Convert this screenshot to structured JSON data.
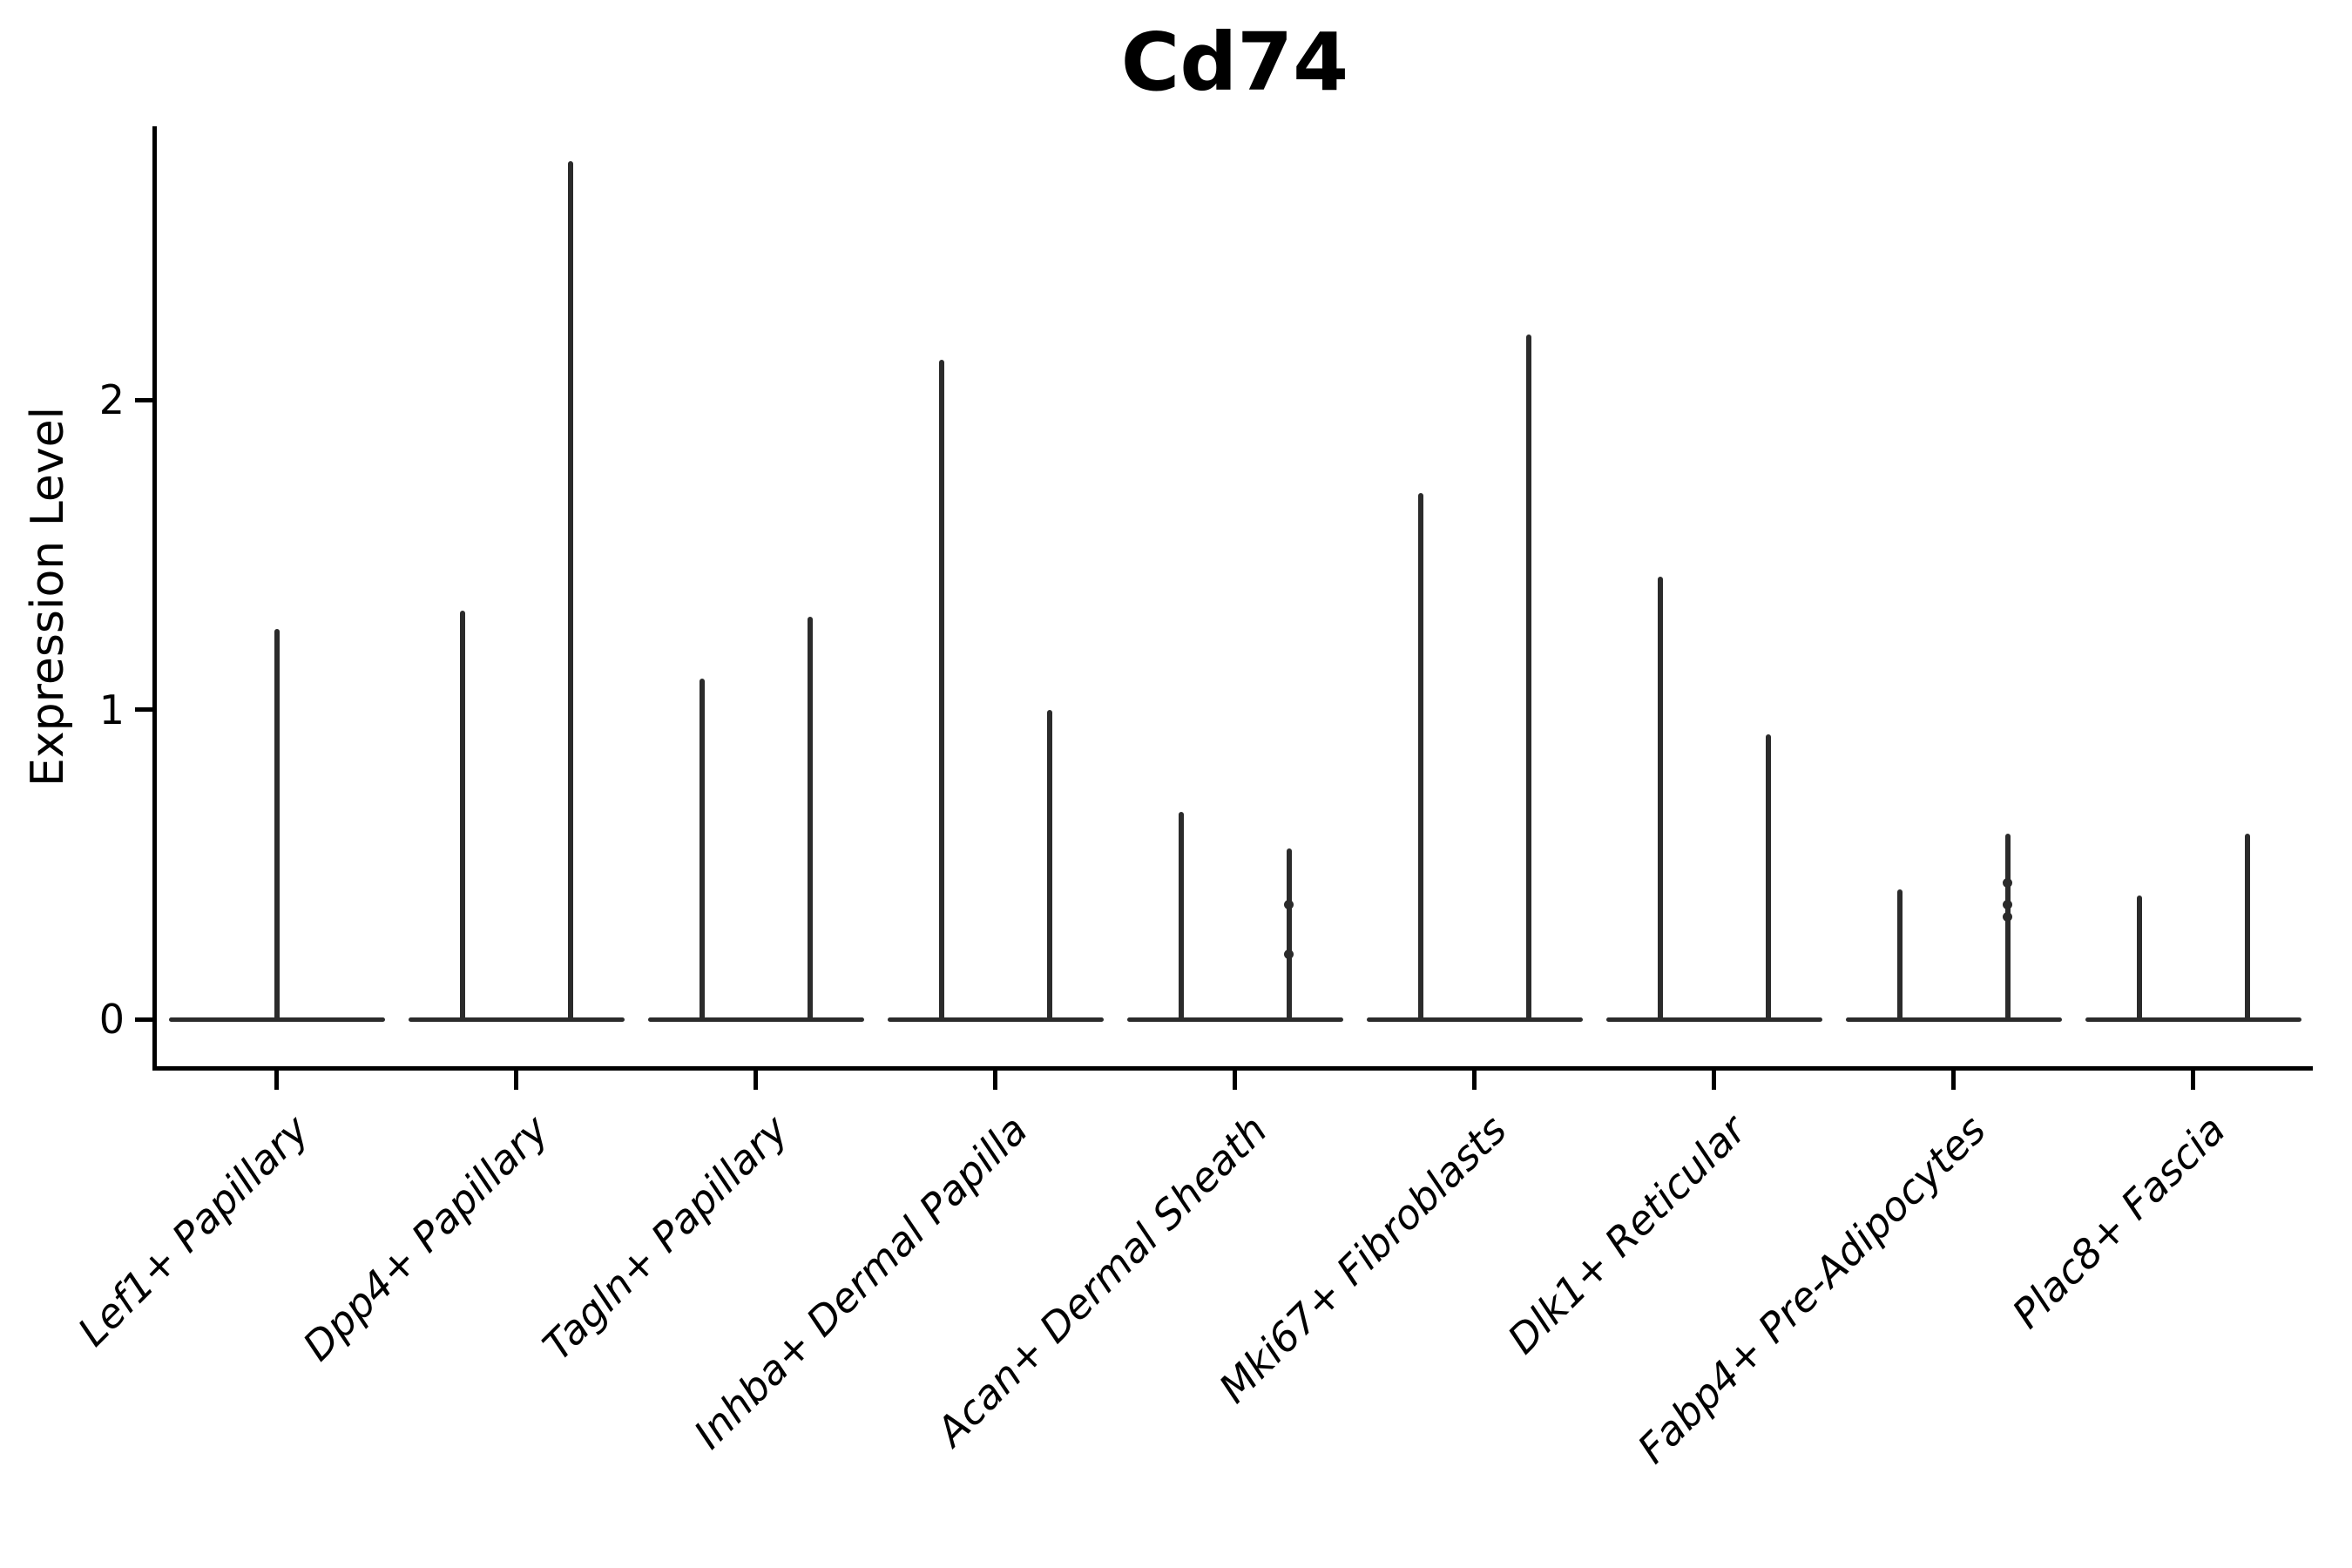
{
  "chart_data": {
    "type": "violin",
    "title": "Cd74",
    "ylabel": "Expression Level",
    "xlabel": "",
    "yticks": [
      0,
      1,
      2
    ],
    "ylim": [
      -0.15,
      2.88
    ],
    "grid": false,
    "legend": "none",
    "violin_color": "#2b2b2b",
    "axis_color": "#000000",
    "categories": [
      "Lef1+ Papillary",
      "Dpp4+ Papillary",
      "Tagln+ Papillary",
      "Inhba+ Dermal Papilla",
      "Acan+ Dermal Sheath",
      "Mki67+ Fibroblasts",
      "Dlk1+ Reticular",
      "Fabp4+ Pre-Adipocytes",
      "Plac8+ Fascia"
    ],
    "violins": [
      [
        1.26
      ],
      [
        1.32,
        2.77
      ],
      [
        1.1,
        1.3
      ],
      [
        2.13,
        1.0
      ],
      [
        0.67,
        0.55
      ],
      [
        1.7,
        2.21
      ],
      [
        1.43,
        0.92
      ],
      [
        0.42,
        0.6
      ],
      [
        0.4,
        0.6
      ]
    ],
    "jitter_dots": [
      {
        "category_index": 4,
        "violin_index": 1,
        "values": [
          0.37,
          0.21
        ]
      },
      {
        "category_index": 7,
        "violin_index": 1,
        "values": [
          0.44,
          0.37,
          0.33
        ]
      }
    ]
  }
}
